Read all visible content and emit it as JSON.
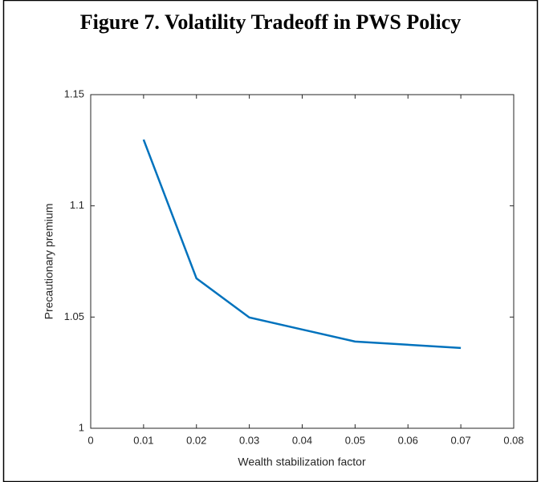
{
  "chart_data": {
    "type": "line",
    "title": "Figure 7. Volatility Tradeoff in PWS Policy",
    "x_label": "Wealth stabilization factor",
    "y_label": "Precautionary premium",
    "x": [
      0.01,
      0.02,
      0.03,
      0.05,
      0.07
    ],
    "series": [
      {
        "color": "#0072bd",
        "values": [
          1.1298,
          1.0674,
          1.0498,
          1.039,
          1.0361
        ]
      }
    ],
    "xlim": [
      0,
      0.08
    ],
    "xticks": [
      0,
      0.01,
      0.02,
      0.03,
      0.04,
      0.05,
      0.06,
      0.07,
      0.08
    ],
    "ylim": [
      1,
      1.15
    ],
    "yticks": [
      1,
      1.05,
      1.1,
      1.15
    ],
    "grid": false
  }
}
